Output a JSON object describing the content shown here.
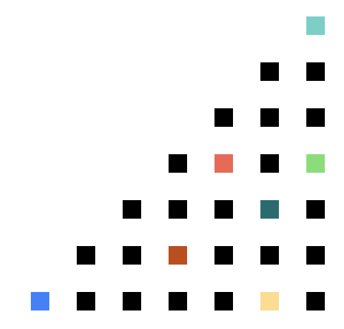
{
  "board": {
    "columns": 7,
    "rows": 7,
    "default_color": "#000000",
    "cells": [
      {
        "col": 6,
        "row": 0,
        "color": "#7ccfc6"
      },
      {
        "col": 5,
        "row": 1,
        "color": "#000000"
      },
      {
        "col": 6,
        "row": 1,
        "color": "#000000"
      },
      {
        "col": 4,
        "row": 2,
        "color": "#000000"
      },
      {
        "col": 5,
        "row": 2,
        "color": "#000000"
      },
      {
        "col": 6,
        "row": 2,
        "color": "#000000"
      },
      {
        "col": 3,
        "row": 3,
        "color": "#000000"
      },
      {
        "col": 4,
        "row": 3,
        "color": "#e56b58"
      },
      {
        "col": 5,
        "row": 3,
        "color": "#000000"
      },
      {
        "col": 6,
        "row": 3,
        "color": "#8ddc7b"
      },
      {
        "col": 2,
        "row": 4,
        "color": "#000000"
      },
      {
        "col": 3,
        "row": 4,
        "color": "#000000"
      },
      {
        "col": 4,
        "row": 4,
        "color": "#000000"
      },
      {
        "col": 5,
        "row": 4,
        "color": "#2b6b70"
      },
      {
        "col": 6,
        "row": 4,
        "color": "#000000"
      },
      {
        "col": 1,
        "row": 5,
        "color": "#000000"
      },
      {
        "col": 2,
        "row": 5,
        "color": "#000000"
      },
      {
        "col": 3,
        "row": 5,
        "color": "#b84f1f"
      },
      {
        "col": 4,
        "row": 5,
        "color": "#000000"
      },
      {
        "col": 5,
        "row": 5,
        "color": "#000000"
      },
      {
        "col": 6,
        "row": 5,
        "color": "#000000"
      },
      {
        "col": 0,
        "row": 6,
        "color": "#4680f5"
      },
      {
        "col": 1,
        "row": 6,
        "color": "#000000"
      },
      {
        "col": 2,
        "row": 6,
        "color": "#000000"
      },
      {
        "col": 3,
        "row": 6,
        "color": "#000000"
      },
      {
        "col": 4,
        "row": 6,
        "color": "#000000"
      },
      {
        "col": 5,
        "row": 6,
        "color": "#fbdc92"
      },
      {
        "col": 6,
        "row": 6,
        "color": "#000000"
      }
    ]
  }
}
